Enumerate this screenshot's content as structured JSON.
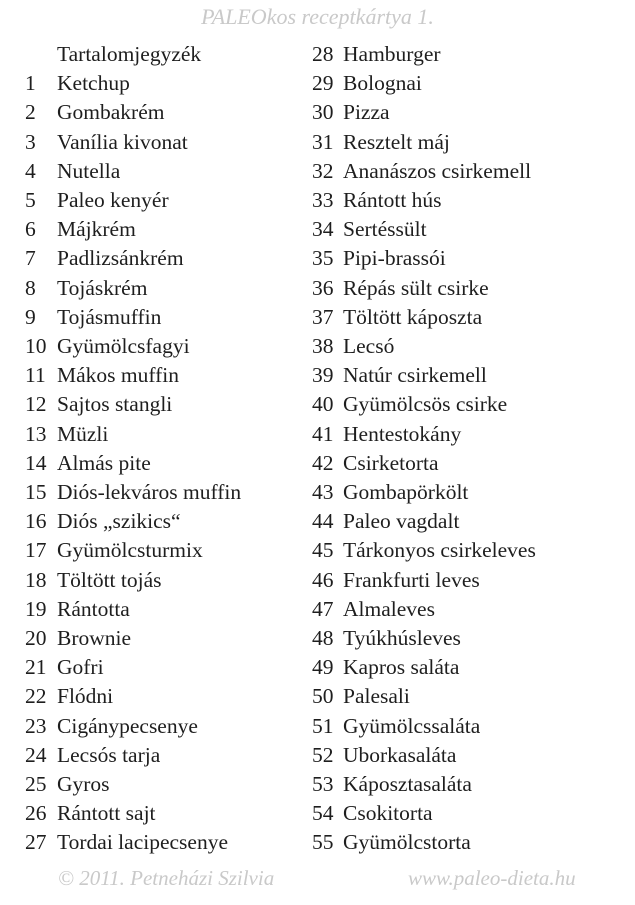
{
  "header": "PALEOkos receptkártya 1.",
  "toc_title": "Tartalomjegyzék",
  "left": [
    [
      "1",
      "Ketchup"
    ],
    [
      "2",
      "Gombakrém"
    ],
    [
      "3",
      "Vanília kivonat"
    ],
    [
      "4",
      "Nutella"
    ],
    [
      "5",
      "Paleo kenyér"
    ],
    [
      "6",
      "Májkrém"
    ],
    [
      "7",
      "Padlizsánkrém"
    ],
    [
      "8",
      "Tojáskrém"
    ],
    [
      "9",
      "Tojásmuffin"
    ],
    [
      "10",
      "Gyümölcsfagyi"
    ],
    [
      "11",
      "Mákos muffin"
    ],
    [
      "12",
      "Sajtos stangli"
    ],
    [
      "13",
      "Müzli"
    ],
    [
      "14",
      "Almás pite"
    ],
    [
      "15",
      "Diós-lekváros muffin"
    ],
    [
      "16",
      "Diós „szikics“"
    ],
    [
      "17",
      "Gyümölcsturmix"
    ],
    [
      "18",
      "Töltött tojás"
    ],
    [
      "19",
      "Rántotta"
    ],
    [
      "20",
      "Brownie"
    ],
    [
      "21",
      "Gofri"
    ],
    [
      "22",
      "Flódni"
    ],
    [
      "23",
      "Cigánypecsenye"
    ],
    [
      "24",
      "Lecsós tarja"
    ],
    [
      "25",
      "Gyros"
    ],
    [
      "26",
      "Rántott sajt"
    ],
    [
      "27",
      "Tordai lacipecsenye"
    ]
  ],
  "right": [
    [
      "28",
      "Hamburger"
    ],
    [
      "29",
      "Bolognai"
    ],
    [
      "30",
      "Pizza"
    ],
    [
      "31",
      "Resztelt máj"
    ],
    [
      "32",
      "Ananászos csirkemell"
    ],
    [
      "33",
      "Rántott hús"
    ],
    [
      "34",
      "Sertéssült"
    ],
    [
      "35",
      "Pipi-brassói"
    ],
    [
      "36",
      "Répás sült csirke"
    ],
    [
      "37",
      "Töltött káposzta"
    ],
    [
      "38",
      "Lecsó"
    ],
    [
      "39",
      "Natúr csirkemell"
    ],
    [
      "40",
      "Gyümölcsös csirke"
    ],
    [
      "41",
      "Hentestokány"
    ],
    [
      "42",
      "Csirketorta"
    ],
    [
      "43",
      "Gombapörkölt"
    ],
    [
      "44",
      "Paleo vagdalt"
    ],
    [
      "45",
      "Tárkonyos csirkeleves"
    ],
    [
      "46",
      "Frankfurti leves"
    ],
    [
      "47",
      "Almaleves"
    ],
    [
      "48",
      "Tyúkhúsleves"
    ],
    [
      "49",
      "Kapros saláta"
    ],
    [
      "50",
      "Palesali"
    ],
    [
      "51",
      "Gyümölcssaláta"
    ],
    [
      "52",
      "Uborkasaláta"
    ],
    [
      "53",
      "Káposztasaláta"
    ],
    [
      "54",
      "Csokitorta"
    ],
    [
      "55",
      "Gyümölcstorta"
    ]
  ],
  "footer": {
    "copyright": "© 2011. Petneházi Szilvia",
    "website": "www.paleo-dieta.hu"
  }
}
